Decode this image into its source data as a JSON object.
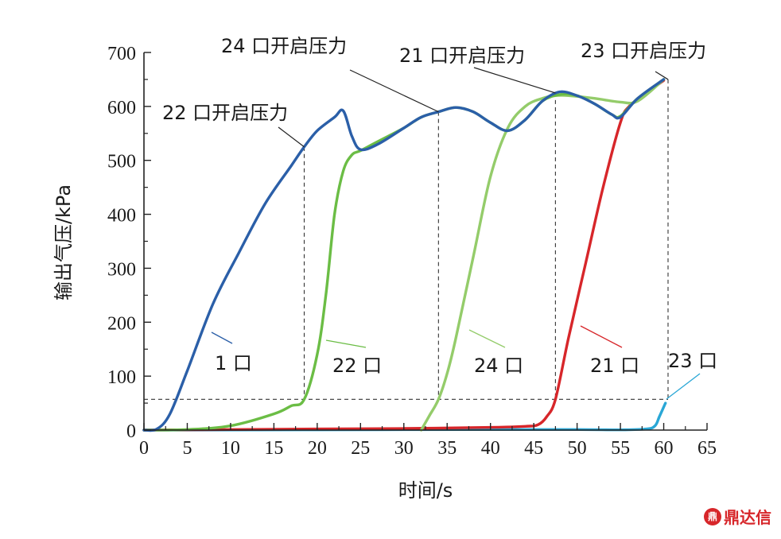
{
  "chart_data": {
    "type": "line",
    "xlabel": "时间/s",
    "ylabel": "输出气压/kPa",
    "xlim": [
      0,
      65
    ],
    "ylim": [
      0,
      700
    ],
    "xticks": [
      0,
      5,
      10,
      15,
      20,
      25,
      30,
      35,
      40,
      45,
      50,
      55,
      60,
      65
    ],
    "yticks": [
      0,
      100,
      200,
      300,
      400,
      500,
      600,
      700
    ],
    "threshold_y": 57,
    "series": [
      {
        "name": "1 口",
        "color": "#2b5fa8",
        "x": [
          0,
          1.5,
          3,
          5,
          8,
          11,
          14,
          17,
          18.5,
          20,
          22,
          23,
          24,
          25,
          27,
          30,
          32,
          34,
          36,
          38,
          40,
          42,
          44,
          46,
          48,
          50,
          52,
          54,
          55,
          57,
          60
        ],
        "y": [
          0,
          2,
          30,
          110,
          235,
          330,
          420,
          490,
          525,
          555,
          580,
          592,
          545,
          520,
          530,
          560,
          580,
          590,
          598,
          590,
          570,
          555,
          575,
          610,
          627,
          620,
          605,
          585,
          580,
          615,
          650
        ]
      },
      {
        "name": "22 口",
        "color": "#6bbd45",
        "x": [
          0,
          5,
          10,
          15,
          17,
          18.5,
          20,
          21,
          22,
          23,
          24,
          25,
          27,
          30,
          32,
          34,
          36,
          38,
          40,
          42,
          44,
          46,
          48,
          50,
          52,
          54,
          55,
          57,
          60
        ],
        "y": [
          0,
          1,
          8,
          30,
          45,
          57,
          140,
          250,
          400,
          480,
          510,
          518,
          535,
          560,
          580,
          590,
          598,
          590,
          570,
          555,
          575,
          610,
          622,
          620,
          605,
          585,
          582,
          615,
          650
        ]
      },
      {
        "name": "24 口",
        "color": "#94cc6a",
        "x": [
          32,
          33,
          34,
          35,
          36,
          38,
          40,
          42,
          44,
          46,
          47.5,
          49,
          52,
          55,
          57,
          60
        ],
        "y": [
          0,
          28,
          57,
          105,
          170,
          320,
          470,
          560,
          600,
          615,
          620,
          620,
          615,
          608,
          610,
          650
        ]
      },
      {
        "name": "21 口",
        "color": "#d7262a",
        "x": [
          0,
          10,
          20,
          30,
          40,
          44,
          45.5,
          46.5,
          47.5,
          49,
          51,
          53,
          55,
          56,
          58,
          60
        ],
        "y": [
          0,
          1,
          2,
          3,
          5,
          7,
          10,
          25,
          57,
          170,
          310,
          450,
          570,
          600,
          625,
          648
        ]
      },
      {
        "name": "23 口",
        "color": "#2aa7d6",
        "x": [
          0,
          20,
          40,
          50,
          55,
          58,
          59,
          59.5,
          60.2
        ],
        "y": [
          0,
          0.5,
          1,
          1,
          0.5,
          2,
          8,
          25,
          50
        ]
      }
    ],
    "series_labels": [
      "1 口",
      "22 口",
      "24 口",
      "21 口",
      "23 口"
    ],
    "pressure_annotations": [
      {
        "text": "22 口开启压力",
        "x": 18.5,
        "y": 525
      },
      {
        "text": "24 口开启压力",
        "x": 34.0,
        "y": 590
      },
      {
        "text": "21 口开启压力",
        "x": 47.5,
        "y": 625
      },
      {
        "text": "23 口开启压力",
        "x": 60.5,
        "y": 650
      }
    ]
  },
  "watermark": {
    "logo_text": "鼎",
    "text": "鼎达信"
  }
}
